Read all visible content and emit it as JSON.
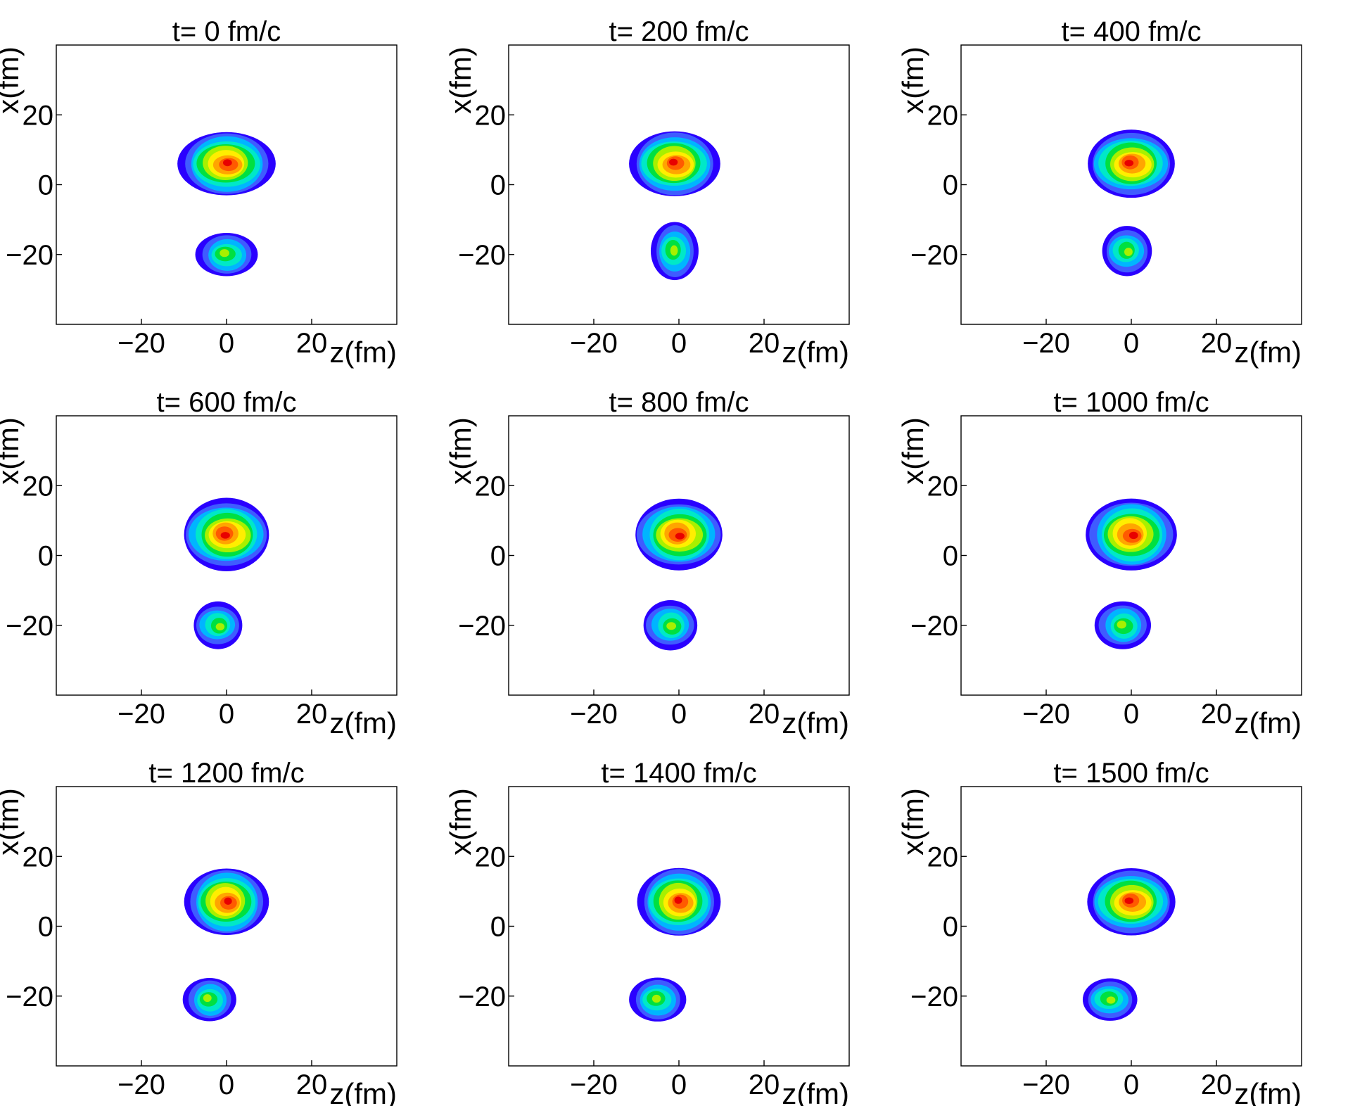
{
  "chart_data": {
    "type": "heatmap",
    "description_axes": {
      "xlabel": "z(fm)",
      "ylabel": "x(fm)"
    },
    "xlim": [
      -40,
      40
    ],
    "ylim": [
      -40,
      40
    ],
    "xticks": [
      -20,
      0,
      20
    ],
    "yticks": [
      -20,
      0,
      20
    ],
    "xtick_labels": [
      "−20",
      "0",
      "20"
    ],
    "ytick_labels": [
      "−20",
      "0",
      "20"
    ],
    "colormap": [
      "#2a00ff",
      "#3f5cff",
      "#00b5ff",
      "#00e8c8",
      "#00e040",
      "#a8f000",
      "#ffee00",
      "#ffa500",
      "#ff5a00",
      "#e80000"
    ],
    "panels": [
      {
        "title": "t= 0 fm/c",
        "time": 0,
        "blobs": [
          {
            "name": "upper",
            "cz": 0,
            "cx": 6,
            "rz": 11,
            "rx": 9.5,
            "peak": 1.0
          },
          {
            "name": "lower",
            "cz": 0,
            "cx": -20,
            "rz": 7,
            "rx": 6.5,
            "peak": 0.55
          }
        ]
      },
      {
        "title": "t= 200 fm/c",
        "time": 200,
        "blobs": [
          {
            "name": "upper",
            "cz": -1,
            "cx": 6,
            "rz": 10.5,
            "rx": 9.5,
            "peak": 0.95
          },
          {
            "name": "lower",
            "cz": -1,
            "cx": -19,
            "rz": 5.5,
            "rx": 8.5,
            "peak": 0.55
          }
        ]
      },
      {
        "title": "t= 400 fm/c",
        "time": 400,
        "blobs": [
          {
            "name": "upper",
            "cz": 0,
            "cx": 6,
            "rz": 10.5,
            "rx": 9.5,
            "peak": 0.95
          },
          {
            "name": "lower",
            "cz": -1,
            "cx": -19,
            "rz": 6,
            "rx": 7,
            "peak": 0.55
          }
        ]
      },
      {
        "title": "t= 600 fm/c",
        "time": 600,
        "blobs": [
          {
            "name": "upper",
            "cz": 0,
            "cx": 6,
            "rz": 10.5,
            "rx": 10,
            "peak": 0.95
          },
          {
            "name": "lower",
            "cz": -2,
            "cx": -20,
            "rz": 6,
            "rx": 6.5,
            "peak": 0.55
          }
        ]
      },
      {
        "title": "t= 800 fm/c",
        "time": 800,
        "blobs": [
          {
            "name": "upper",
            "cz": 0,
            "cx": 6,
            "rz": 10.5,
            "rx": 10,
            "peak": 0.95
          },
          {
            "name": "lower",
            "cz": -2,
            "cx": -20,
            "rz": 6.5,
            "rx": 7,
            "peak": 0.55
          }
        ]
      },
      {
        "title": "t= 1000 fm/c",
        "time": 1000,
        "blobs": [
          {
            "name": "upper",
            "cz": 0,
            "cx": 6,
            "rz": 10.5,
            "rx": 10.5,
            "peak": 0.95
          },
          {
            "name": "lower",
            "cz": -2,
            "cx": -20,
            "rz": 6.5,
            "rx": 7,
            "peak": 0.55
          }
        ]
      },
      {
        "title": "t= 1200 fm/c",
        "time": 1200,
        "blobs": [
          {
            "name": "upper",
            "cz": 0,
            "cx": 7,
            "rz": 9.5,
            "rx": 10,
            "peak": 0.95
          },
          {
            "name": "lower",
            "cz": -4,
            "cx": -21,
            "rz": 6,
            "rx": 6.5,
            "peak": 0.55
          }
        ]
      },
      {
        "title": "t= 1400 fm/c",
        "time": 1400,
        "blobs": [
          {
            "name": "upper",
            "cz": 0,
            "cx": 7,
            "rz": 9.5,
            "rx": 10,
            "peak": 0.95
          },
          {
            "name": "lower",
            "cz": -5,
            "cx": -21,
            "rz": 6.5,
            "rx": 6.5,
            "peak": 0.55
          }
        ]
      },
      {
        "title": "t= 1500 fm/c",
        "time": 1500,
        "blobs": [
          {
            "name": "upper",
            "cz": 0,
            "cx": 7,
            "rz": 10.5,
            "rx": 9.5,
            "peak": 0.95
          },
          {
            "name": "lower",
            "cz": -5,
            "cx": -21,
            "rz": 6.5,
            "rx": 6,
            "peak": 0.55
          }
        ]
      }
    ]
  }
}
